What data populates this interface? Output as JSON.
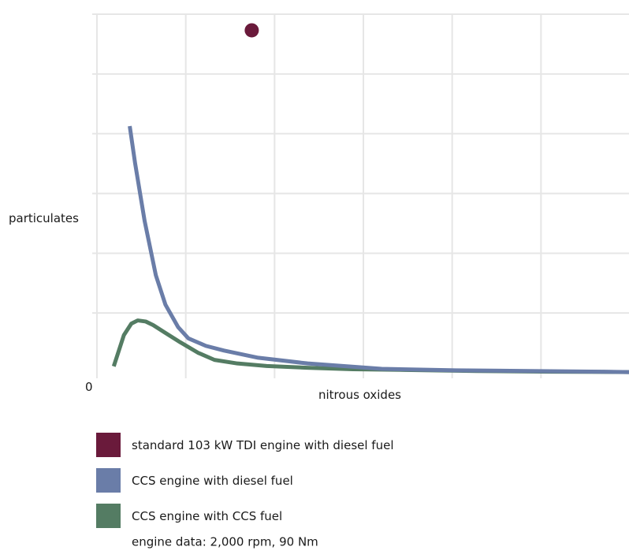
{
  "chart_data": {
    "type": "line",
    "xlabel": "nitrous oxides",
    "ylabel": "particulates",
    "origin_label": "0",
    "xlim": [
      0,
      100
    ],
    "ylim": [
      0,
      100
    ],
    "grid": true,
    "axis_tick_values_shown": false,
    "series": [
      {
        "name": "CCS engine with diesel fuel",
        "kind": "line",
        "color": "#6a7da8",
        "x": [
          6.3,
          7.3,
          9.1,
          11.2,
          13.0,
          15.4,
          17.3,
          20.6,
          24.0,
          30.4,
          39.7,
          53.6,
          67.5,
          81.4,
          95.3,
          100
        ],
        "y": [
          68.8,
          58.5,
          42.3,
          27.2,
          19.0,
          12.7,
          9.6,
          7.5,
          6.2,
          4.2,
          2.6,
          1.1,
          0.7,
          0.5,
          0.3,
          0.2
        ]
      },
      {
        "name": "CCS engine with CCS fuel",
        "kind": "line",
        "color": "#547c63",
        "x": [
          3.3,
          5.2,
          6.6,
          7.8,
          9.3,
          10.7,
          12.9,
          15.8,
          19.1,
          22.2,
          26.5,
          32.0,
          39.6,
          48.2,
          57.9,
          71.4,
          85.3,
          100
        ],
        "y": [
          1.8,
          10.5,
          13.7,
          14.6,
          14.3,
          13.3,
          11.2,
          8.5,
          5.6,
          3.6,
          2.6,
          1.9,
          1.4,
          1.0,
          0.8,
          0.5,
          0.3,
          0.2
        ]
      },
      {
        "name": "standard 103 kW TDI engine with diesel fuel",
        "kind": "point",
        "color": "#6a1a3b",
        "x": [
          29.2
        ],
        "y": [
          95.5
        ]
      }
    ]
  },
  "legend": [
    {
      "label": "standard 103 kW TDI engine with diesel fuel",
      "color": "#6a1a3b"
    },
    {
      "label": "CCS engine with diesel fuel",
      "color": "#6a7da8"
    },
    {
      "label": "CCS engine with CCS fuel",
      "color": "#547c63"
    }
  ],
  "note": "engine data: 2,000 rpm, 90 Nm"
}
